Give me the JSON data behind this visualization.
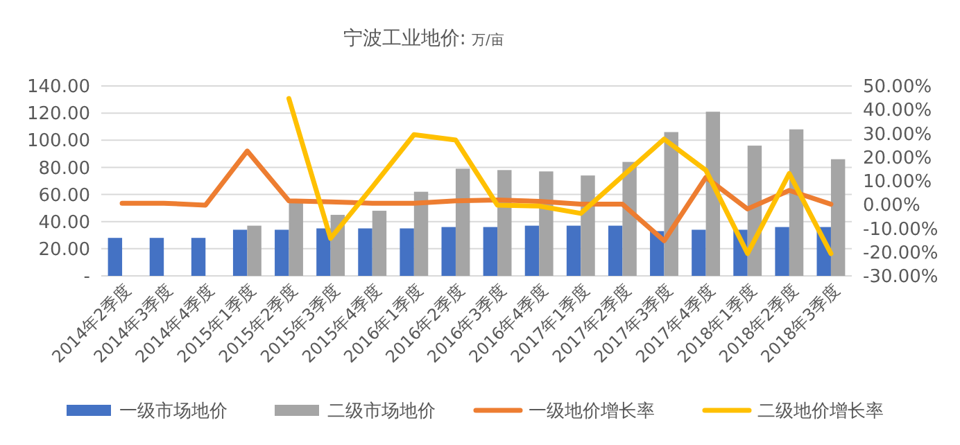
{
  "chart_data": {
    "type": "bar",
    "title": "宁波工业地价:",
    "subtitle": "万/亩",
    "categories": [
      "2014年2季度",
      "2014年3季度",
      "2014年4季度",
      "2015年1季度",
      "2015年2季度",
      "2015年3季度",
      "2015年4季度",
      "2016年1季度",
      "2016年2季度",
      "2016年3季度",
      "2016年4季度",
      "2017年1季度",
      "2017年2季度",
      "2017年3季度",
      "2017年4季度",
      "2018年1季度",
      "2018年2季度",
      "2018年3季度"
    ],
    "series": [
      {
        "name": "一级市场地价",
        "color": "#4472c4",
        "values": [
          28,
          28,
          28,
          34,
          34,
          35,
          35,
          35,
          36,
          36,
          37,
          37,
          37,
          33,
          34,
          34,
          36,
          36
        ]
      },
      {
        "name": "二级市场地价",
        "color": "#a5a5a5",
        "values": [
          null,
          null,
          null,
          37,
          55,
          45,
          48,
          62,
          79,
          78,
          77,
          74,
          84,
          106,
          121,
          96,
          108,
          86
        ]
      },
      {
        "name": "一级地价增长率",
        "type": "line",
        "axis": "y2",
        "color": "#ed7d31",
        "values": [
          0.6,
          0.6,
          -0.2,
          22.6,
          1.6,
          1.2,
          0.6,
          0.6,
          1.6,
          2.0,
          1.4,
          0.2,
          0.2,
          -15.2,
          11.5,
          -1.8,
          6.0,
          0.2
        ]
      },
      {
        "name": "二级地价增长率",
        "type": "line",
        "axis": "y2",
        "color": "#ffc000",
        "values": [
          null,
          null,
          null,
          null,
          44.7,
          -14.2,
          7.4,
          29.5,
          27.2,
          -0.2,
          -0.6,
          -3.7,
          12,
          27.6,
          14.5,
          -20.6,
          13.1,
          -20.6
        ]
      }
    ],
    "ylim": [
      0,
      140
    ],
    "yticks": [
      {
        "value": 0,
        "label": "-"
      },
      {
        "value": 20,
        "label": "20.00"
      },
      {
        "value": 40,
        "label": "40.00"
      },
      {
        "value": 60,
        "label": "60.00"
      },
      {
        "value": 80,
        "label": "80.00"
      },
      {
        "value": 100,
        "label": "100.00"
      },
      {
        "value": 120,
        "label": "120.00"
      },
      {
        "value": 140,
        "label": "140.00"
      }
    ],
    "y2lim": [
      -30,
      50
    ],
    "y2ticks": [
      {
        "value": -30,
        "label": "-30.00%"
      },
      {
        "value": -20,
        "label": "-20.00%"
      },
      {
        "value": -10,
        "label": "-10.00%"
      },
      {
        "value": 0,
        "label": "0.00%"
      },
      {
        "value": 10,
        "label": "10.00%"
      },
      {
        "value": 20,
        "label": "20.00%"
      },
      {
        "value": 30,
        "label": "30.00%"
      },
      {
        "value": 40,
        "label": "40.00%"
      },
      {
        "value": 50,
        "label": "50.00%"
      }
    ],
    "grid": "y",
    "legend": "bottom",
    "marker": "none",
    "line_style": "solid"
  }
}
